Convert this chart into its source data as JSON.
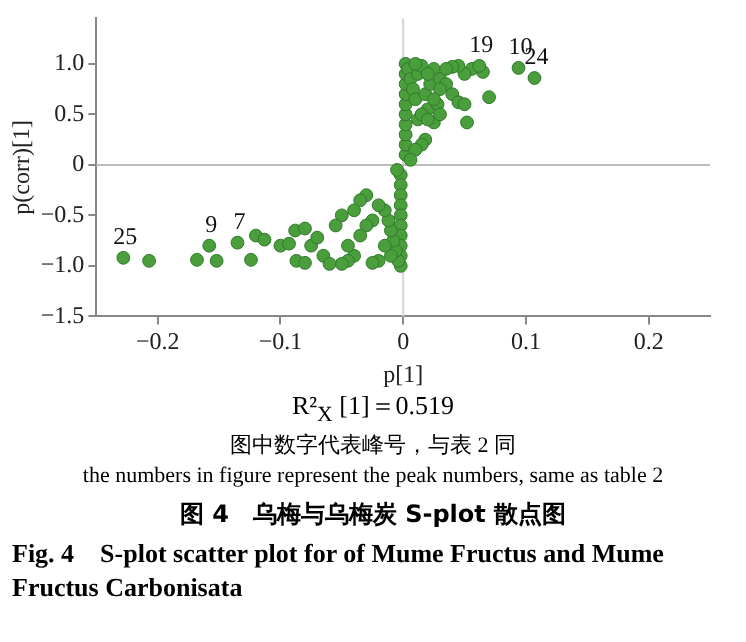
{
  "chart_data": {
    "type": "scatter",
    "title": "图 4　乌梅与乌梅炭 S-plot 散点图",
    "subtitle": "Fig. 4　S-plot scatter plot for of Mume Fructus and Mume Fructus Carbonisata",
    "xlabel": "p[1]",
    "ylabel": "p(corr)[1]",
    "series": [
      {
        "color": "#4a9e3c",
        "x": [
          0.002,
          0.002,
          0.002,
          0.002,
          0.002,
          0.002,
          0.002,
          0.002,
          0.002,
          0.002,
          0.004,
          0.006,
          0.008,
          0.01,
          0.012,
          0.015,
          0.018,
          0.02,
          0.022,
          0.025,
          0.028,
          0.03,
          0.01,
          0.012,
          0.015,
          0.02,
          0.025,
          0.03,
          0.035,
          0.04,
          0.045,
          0.05,
          0.056,
          0.065,
          0.062,
          0.094,
          0.107,
          0.07,
          0.052,
          0.05,
          0.045,
          0.04,
          0.035,
          0.03,
          0.025,
          0.02,
          0.018,
          0.015,
          0.01,
          0.006,
          -0.002,
          -0.002,
          -0.002,
          -0.002,
          -0.002,
          -0.002,
          -0.002,
          -0.002,
          -0.002,
          -0.002,
          -0.004,
          -0.006,
          -0.008,
          -0.01,
          -0.012,
          -0.015,
          -0.02,
          -0.025,
          -0.03,
          -0.035,
          -0.04,
          -0.045,
          -0.05,
          -0.01,
          -0.015,
          -0.02,
          -0.025,
          -0.03,
          -0.035,
          -0.04,
          -0.05,
          -0.228,
          -0.207,
          -0.168,
          -0.158,
          -0.152,
          -0.135,
          -0.124,
          -0.12,
          -0.113,
          -0.1,
          -0.093,
          -0.088,
          -0.08,
          -0.087,
          -0.08,
          -0.075,
          -0.07,
          -0.065,
          -0.06,
          -0.055,
          -0.045,
          -0.005
        ],
        "values": [
          0.1,
          0.2,
          0.3,
          0.4,
          0.5,
          0.6,
          0.7,
          0.8,
          0.9,
          1.0,
          0.95,
          0.85,
          0.75,
          0.65,
          0.9,
          0.98,
          0.7,
          0.55,
          0.8,
          0.95,
          0.6,
          0.85,
          1.0,
          0.45,
          0.5,
          0.9,
          0.42,
          0.5,
          0.8,
          0.7,
          0.62,
          0.6,
          0.95,
          0.92,
          0.98,
          0.96,
          0.86,
          0.67,
          0.42,
          0.9,
          0.98,
          0.97,
          0.95,
          0.75,
          0.65,
          0.45,
          0.25,
          0.2,
          0.15,
          0.05,
          -0.1,
          -0.2,
          -0.3,
          -0.4,
          -0.5,
          -0.6,
          -0.7,
          -0.8,
          -0.9,
          -1.0,
          -0.95,
          -0.85,
          -0.75,
          -0.65,
          -0.55,
          -0.45,
          -0.4,
          -0.55,
          -0.6,
          -0.7,
          -0.9,
          -0.95,
          -0.98,
          -0.9,
          -0.8,
          -0.95,
          -0.97,
          -0.3,
          -0.35,
          -0.45,
          -0.5,
          -0.92,
          -0.95,
          -0.94,
          -0.8,
          -0.95,
          -0.77,
          -0.94,
          -0.7,
          -0.74,
          -0.8,
          -0.78,
          -0.65,
          -0.63,
          -0.95,
          -0.97,
          -0.8,
          -0.72,
          -0.9,
          -0.98,
          -0.6,
          -0.8,
          -0.05
        ]
      }
    ],
    "marker": "circle",
    "grid": false,
    "xlim": [
      -0.25,
      0.25
    ],
    "ylim": [
      -1.5,
      1.45
    ],
    "xticks": [
      {
        "value": -0.2,
        "label": "−0.2"
      },
      {
        "value": -0.1,
        "label": "−0.1"
      },
      0,
      0.1,
      0.2
    ],
    "yticks": [
      {
        "value": -1.5,
        "label": "−1.5"
      },
      {
        "value": -1,
        "label": "−1.0"
      },
      {
        "value": -0.5,
        "label": "−0.5"
      },
      0,
      0.5,
      {
        "value": 1,
        "label": "1.0"
      }
    ],
    "ref_lines": [
      {
        "axis": "x",
        "value": 0,
        "color": "#d4d4d4"
      },
      {
        "axis": "y",
        "value": 0,
        "color": "#bcbcbc"
      }
    ],
    "annotations": [
      {
        "text": "25",
        "x": -0.228,
        "y": -0.92
      },
      {
        "text": "9",
        "x": -0.158,
        "y": -0.8
      },
      {
        "text": "7",
        "x": -0.135,
        "y": -0.77
      },
      {
        "text": "19",
        "x": 0.062,
        "y": 0.98
      },
      {
        "text": "10",
        "x": 0.094,
        "y": 0.96
      },
      {
        "text": "24",
        "x": 0.107,
        "y": 0.86
      },
      "R²$_{X}$ [1]＝0.519",
      "图中数字代表峰号，与表 2 同",
      "the numbers in figure represent the peak numbers, same as table 2"
    ]
  }
}
